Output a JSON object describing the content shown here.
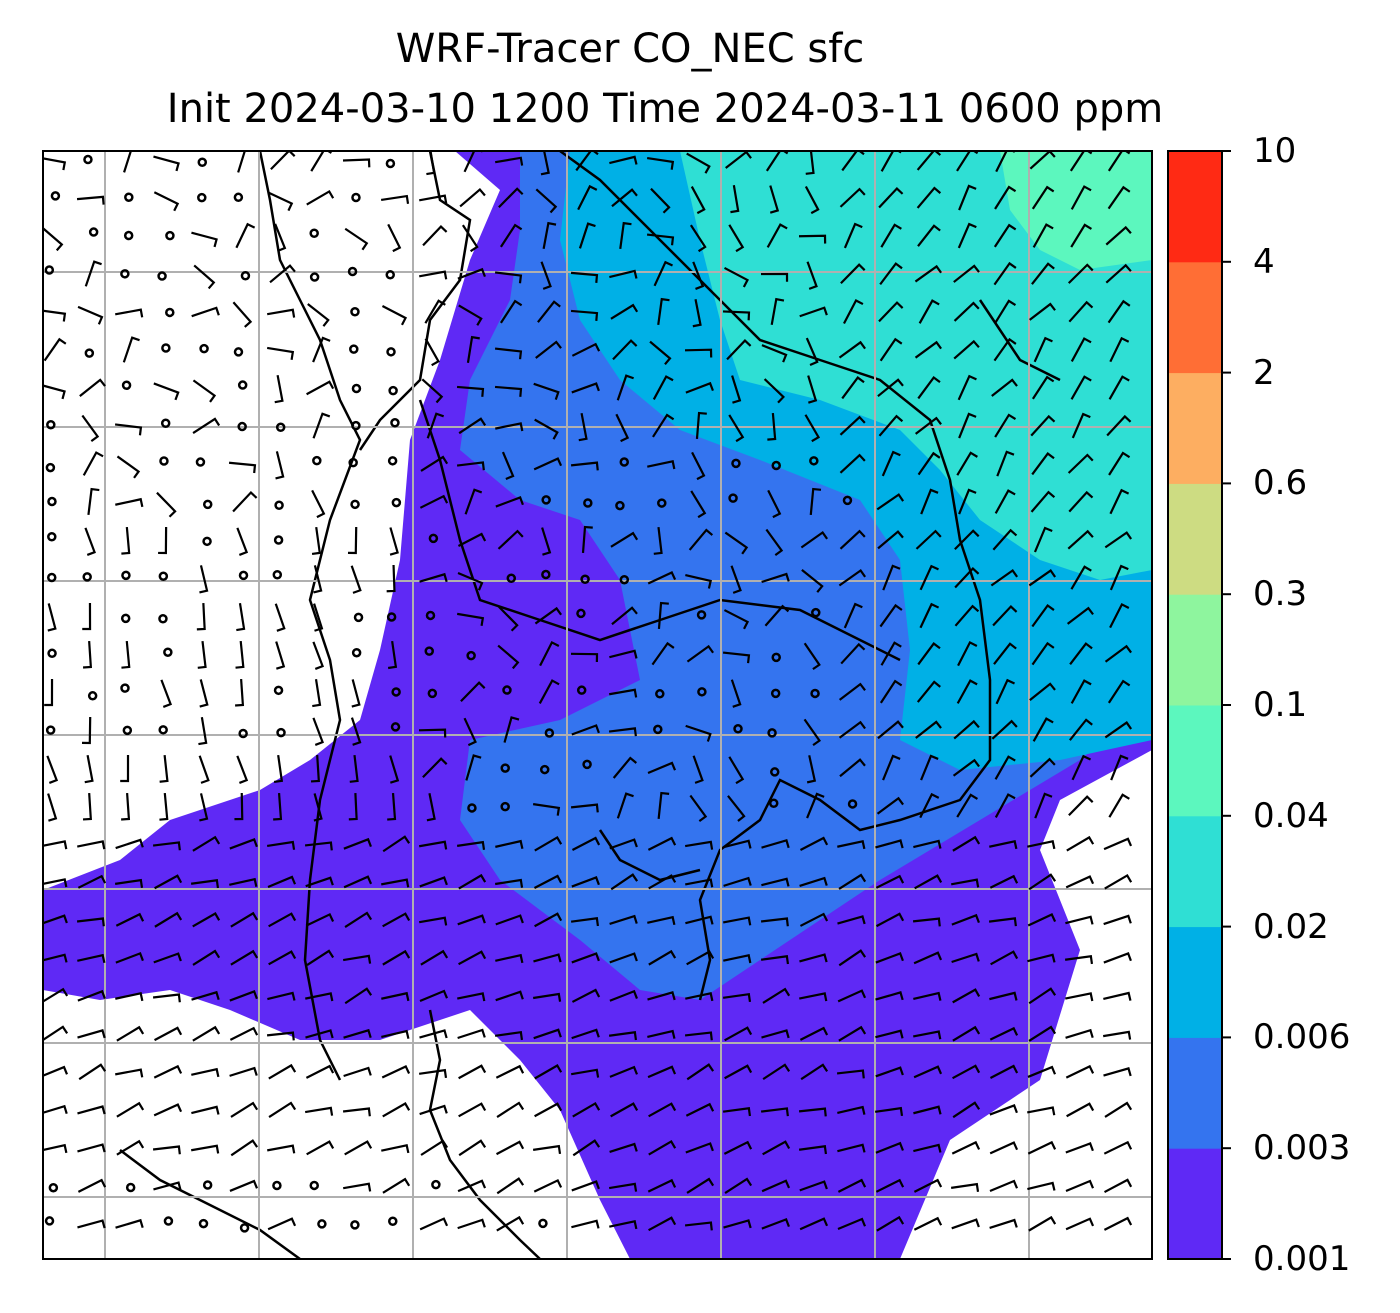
{
  "title": {
    "line1": "WRF-Tracer CO_NEC sfc",
    "line2": "Init 2024-03-10 1200 Time 2024-03-11 0600 ppm"
  },
  "colorbar": {
    "levels": [
      {
        "label": "0.001",
        "color": "#5f29f5"
      },
      {
        "label": "0.003",
        "color": "#3474ef"
      },
      {
        "label": "0.006",
        "color": "#00b0e6"
      },
      {
        "label": "0.02",
        "color": "#2fdfd4"
      },
      {
        "label": "0.04",
        "color": "#5cf7be"
      },
      {
        "label": "0.1",
        "color": "#8ef59e"
      },
      {
        "label": "0.3",
        "color": "#cddc82"
      },
      {
        "label": "0.6",
        "color": "#fdae61"
      },
      {
        "label": "2",
        "color": "#ff6e35"
      },
      {
        "label": "4",
        "color": "#ff2a14"
      },
      {
        "label": "10",
        "color": null
      }
    ]
  },
  "map": {
    "field_colors": {
      "background": "#ffffff",
      "gridlines": "#b0b0b0",
      "coastline": "#000000",
      "barbs": "#000000"
    }
  }
}
